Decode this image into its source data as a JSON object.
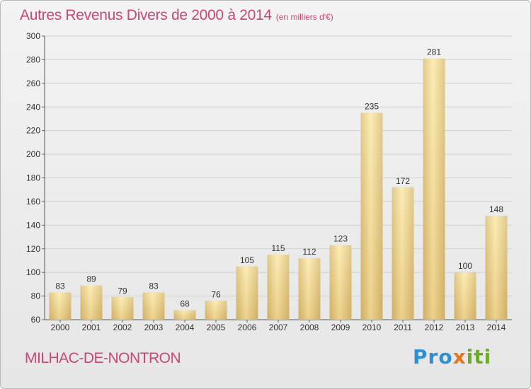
{
  "title": "Autres Revenus Divers de 2000 à 2014",
  "unit": "(en milliers d'€)",
  "commune": "MILHAC-DE-NONTRON",
  "logo": {
    "text": "Proxiti",
    "colors": [
      "#2f8fd0",
      "#e8751a",
      "#6dab2a"
    ]
  },
  "chart_data": {
    "type": "bar",
    "categories": [
      "2000",
      "2001",
      "2002",
      "2003",
      "2004",
      "2005",
      "2006",
      "2007",
      "2008",
      "2009",
      "2010",
      "2011",
      "2012",
      "2013",
      "2014"
    ],
    "values": [
      83,
      89,
      79,
      83,
      68,
      76,
      105,
      115,
      112,
      123,
      235,
      172,
      281,
      100,
      148
    ],
    "ylim": [
      60,
      300
    ],
    "yticks": [
      60,
      80,
      100,
      120,
      140,
      160,
      180,
      200,
      220,
      240,
      260,
      280,
      300
    ],
    "grid": true,
    "bar_colors": {
      "light": "#fbe8a8",
      "dark": "#c8a860"
    }
  }
}
